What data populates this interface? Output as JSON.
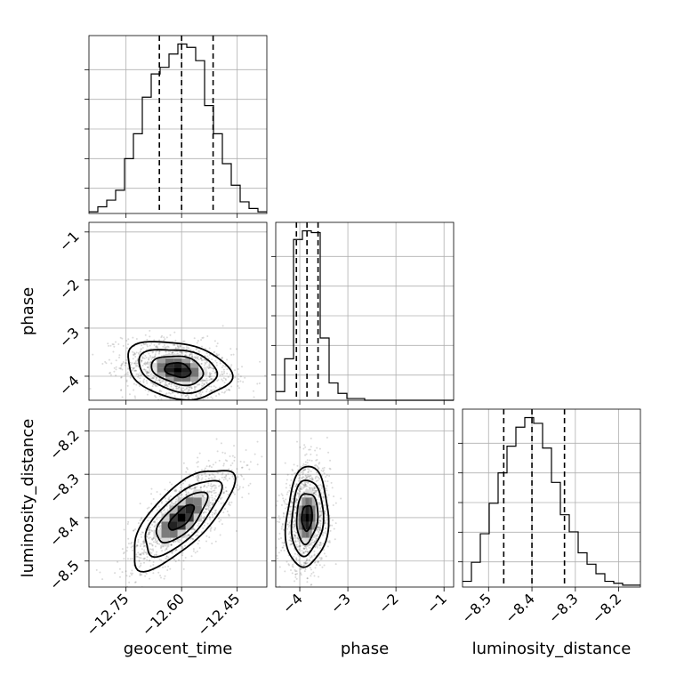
{
  "chart_data": {
    "type": "corner",
    "parameters": [
      "geocent_time",
      "phase",
      "luminosity_distance"
    ],
    "axes": {
      "geocent_time": {
        "range": [
          -12.85,
          -12.37
        ],
        "ticks": [
          -12.75,
          -12.6,
          -12.45
        ],
        "tick_labels": [
          "−12.75",
          "−12.60",
          "−12.45"
        ],
        "xlabel": "geocent_time"
      },
      "phase": {
        "range": [
          -4.5,
          -0.8
        ],
        "ticks": [
          -4,
          -3,
          -2,
          -1
        ],
        "tick_labels": [
          "−4",
          "−3",
          "−2",
          "−1"
        ],
        "xlabel": "phase",
        "ylabel": "phase"
      },
      "luminosity_distance": {
        "range": [
          -8.56,
          -8.15
        ],
        "ticks": [
          -8.5,
          -8.4,
          -8.3,
          -8.2
        ],
        "tick_labels": [
          "−8.5",
          "−8.4",
          "−8.3",
          "−8.2"
        ],
        "xlabel": "luminosity_distance",
        "ylabel": "luminosity_distance"
      }
    },
    "marginals": [
      {
        "parameter": "geocent_time",
        "bin_edges": [
          -12.85,
          -12.826,
          -12.802,
          -12.778,
          -12.754,
          -12.73,
          -12.706,
          -12.682,
          -12.658,
          -12.634,
          -12.61,
          -12.586,
          -12.562,
          -12.538,
          -12.514,
          -12.49,
          -12.466,
          -12.442,
          -12.418,
          -12.394,
          -12.37
        ],
        "counts": [
          1,
          4,
          8,
          14,
          33,
          48,
          70,
          84,
          88,
          96,
          102,
          100,
          92,
          65,
          48,
          30,
          17,
          7,
          3,
          1
        ],
        "quantiles": [
          -12.66,
          -12.6,
          -12.515
        ]
      },
      {
        "parameter": "phase",
        "bin_edges": [
          -4.5,
          -4.315,
          -4.13,
          -3.945,
          -3.76,
          -3.575,
          -3.39,
          -3.205,
          -3.02,
          -2.835,
          -2.65,
          -2.465,
          -2.28,
          -2.095,
          -1.91,
          -1.725,
          -1.54,
          -1.355,
          -1.17,
          -0.985,
          -0.8
        ],
        "counts": [
          5,
          24,
          93,
          98,
          97,
          36,
          10,
          4,
          1,
          1,
          0,
          0,
          0,
          0,
          0,
          0,
          0,
          0,
          0,
          0
        ],
        "quantiles": [
          -4.07,
          -3.85,
          -3.62
        ]
      },
      {
        "parameter": "luminosity_distance",
        "bin_edges": [
          -8.56,
          -8.5395,
          -8.519,
          -8.4985,
          -8.478,
          -8.4575,
          -8.437,
          -8.4165,
          -8.396,
          -8.3755,
          -8.355,
          -8.3345,
          -8.314,
          -8.2935,
          -8.273,
          -8.2525,
          -8.232,
          -8.2115,
          -8.191,
          -8.1705,
          -8.15
        ],
        "counts": [
          3,
          13,
          28,
          44,
          60,
          74,
          84,
          89,
          86,
          73,
          55,
          38,
          29,
          18,
          12,
          7,
          3,
          2,
          1,
          1
        ],
        "quantiles": [
          -8.465,
          -8.4,
          -8.325
        ]
      }
    ],
    "pairs": [
      {
        "x": "geocent_time",
        "y": "phase",
        "center": [
          -12.61,
          -3.87
        ],
        "sigma": [
          0.07,
          0.3
        ],
        "correlation": -0.25,
        "contour_levels_sigma": [
          0.5,
          1,
          1.5,
          2
        ]
      },
      {
        "x": "geocent_time",
        "y": "luminosity_distance",
        "center": [
          -12.6,
          -8.4
        ],
        "sigma": [
          0.068,
          0.058
        ],
        "correlation": 0.72,
        "contour_levels_sigma": [
          0.5,
          1,
          1.5,
          2
        ]
      },
      {
        "x": "phase",
        "y": "luminosity_distance",
        "center": [
          -3.85,
          -8.4
        ],
        "sigma": [
          0.22,
          0.058
        ],
        "correlation": 0.12,
        "contour_levels_sigma": [
          0.5,
          1,
          1.5,
          2
        ]
      }
    ],
    "grid": true,
    "colors": {
      "line": "#000000",
      "grid": "#b0b0b0",
      "points": "#555555"
    }
  }
}
